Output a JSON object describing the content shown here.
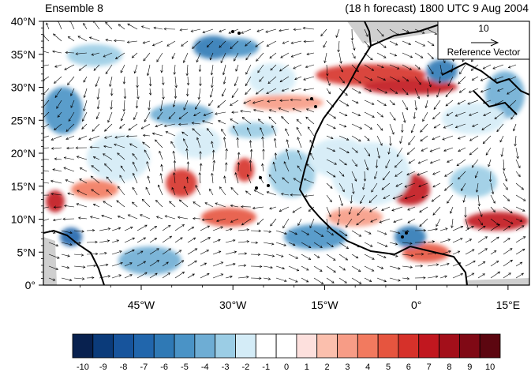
{
  "header": {
    "left_title": "Ensemble 8",
    "right_title": "(18 h forecast) 1800 UTC 9 Aug 2004"
  },
  "map": {
    "lon_range": [
      -61,
      18.5
    ],
    "lat_range": [
      0,
      40
    ],
    "lat_labels": [
      "0°",
      "5°N",
      "10°N",
      "15°N",
      "20°N",
      "25°N",
      "30°N",
      "35°N",
      "40°N"
    ],
    "lat_values": [
      0,
      5,
      10,
      15,
      20,
      25,
      30,
      35,
      40
    ],
    "lon_labels": [
      "45°W",
      "30°W",
      "15°W",
      "0°",
      "15°E"
    ],
    "lon_values": [
      -45,
      -30,
      -15,
      0,
      15
    ],
    "coastline_color": "#000000",
    "land_mask_color": "#cfcfcf",
    "vector_color": "#000000"
  },
  "reference_vector": {
    "value": "10",
    "label": "Reference Vector"
  },
  "colorbar": {
    "labels": [
      "-10",
      "-9",
      "-8",
      "-7",
      "-6",
      "-5",
      "-4",
      "-3",
      "-2",
      "-1",
      "0",
      "1",
      "2",
      "3",
      "4",
      "5",
      "6",
      "7",
      "8",
      "9",
      "10"
    ],
    "colors": [
      "#08214f",
      "#0b3b7a",
      "#17549c",
      "#2166ac",
      "#2f79b5",
      "#4a93c6",
      "#6eadd4",
      "#9bcde5",
      "#d4ecf7",
      "#ffffff",
      "#ffffff",
      "#fde0dd",
      "#fbbfad",
      "#f79c86",
      "#f27a5f",
      "#e6553f",
      "#d6312a",
      "#c1171f",
      "#a30f1a",
      "#800915",
      "#5c0610"
    ]
  }
}
